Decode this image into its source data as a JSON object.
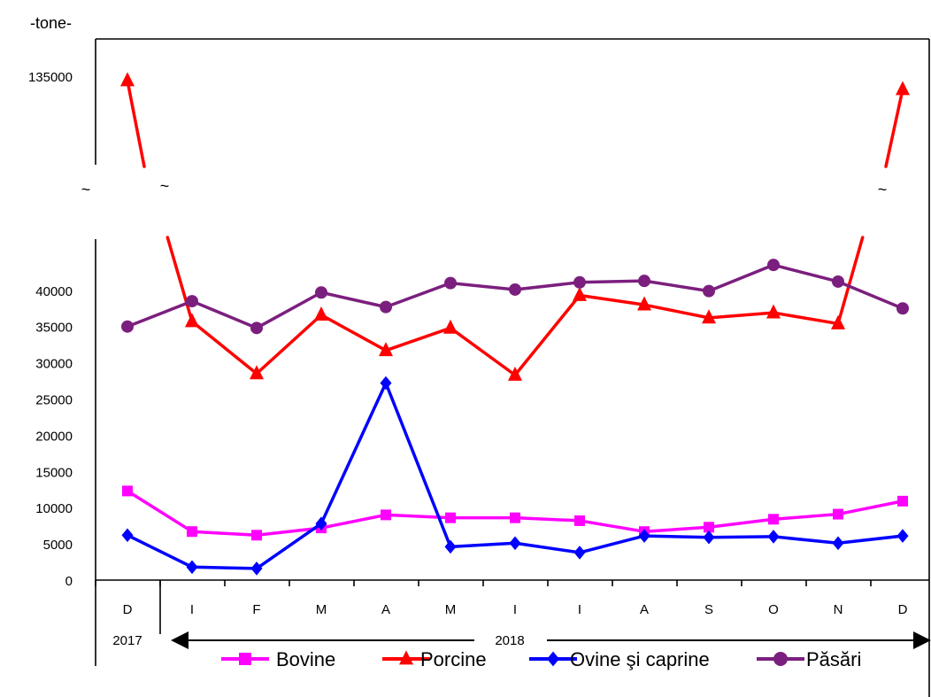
{
  "chart_data": {
    "type": "line",
    "unit_label": "-tone-",
    "categories": [
      "D",
      "I",
      "F",
      "M",
      "A",
      "M",
      "I",
      "I",
      "A",
      "S",
      "O",
      "N",
      "D"
    ],
    "year_labels": [
      "2017",
      "2018"
    ],
    "y_ticks_lower": [
      0,
      5000,
      10000,
      15000,
      20000,
      25000,
      30000,
      35000,
      40000
    ],
    "y_ticks_upper": [
      135000
    ],
    "axis_break": true,
    "break_symbol": "~",
    "ylim_lower": [
      0,
      40000
    ],
    "grid": false,
    "legend_position": "bottom",
    "series": [
      {
        "name": "Bovine",
        "color": "#FF00FF",
        "marker": "square",
        "values": [
          12300,
          6700,
          6200,
          7200,
          9000,
          8600,
          8600,
          8200,
          6700,
          7300,
          8400,
          9100,
          10900
        ]
      },
      {
        "name": "Porcine",
        "color": "#FF0000",
        "marker": "triangle",
        "values": [
          131000,
          35700,
          28500,
          36600,
          31700,
          34800,
          28300,
          39300,
          38000,
          36200,
          36900,
          35400,
          123000
        ]
      },
      {
        "name": "Ovine şi caprine",
        "color": "#0000FF",
        "marker": "diamond",
        "values": [
          6200,
          1800,
          1600,
          7800,
          27200,
          4600,
          5100,
          3800,
          6100,
          5900,
          6000,
          5100,
          6100
        ]
      },
      {
        "name": "Păsări",
        "color": "#7B1F7E",
        "marker": "circle",
        "values": [
          35000,
          38500,
          34800,
          39700,
          37700,
          41000,
          40100,
          41100,
          41300,
          39900,
          43500,
          41200,
          37500
        ]
      }
    ]
  }
}
